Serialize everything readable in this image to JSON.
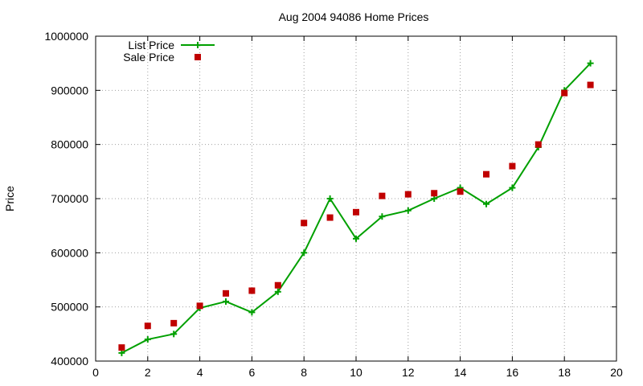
{
  "chart_data": {
    "type": "line",
    "title": "Aug 2004 94086 Home Prices",
    "xlabel": "",
    "ylabel": "Price",
    "xlim": [
      0,
      20
    ],
    "ylim": [
      400000,
      1000000
    ],
    "xticks": [
      0,
      2,
      4,
      6,
      8,
      10,
      12,
      14,
      16,
      18,
      20
    ],
    "yticks": [
      400000,
      500000,
      600000,
      700000,
      800000,
      900000,
      1000000
    ],
    "grid": true,
    "legend_position": "top-left",
    "series": [
      {
        "name": "List Price",
        "style": "line-with-plus-markers",
        "color": "#00a000",
        "x": [
          1,
          2,
          3,
          4,
          5,
          6,
          7,
          8,
          9,
          10,
          11,
          12,
          13,
          14,
          15,
          16,
          17,
          18,
          19
        ],
        "values": [
          415000,
          440000,
          450000,
          498000,
          510000,
          490000,
          528000,
          600000,
          700000,
          626000,
          667000,
          678000,
          700000,
          720000,
          690000,
          720000,
          795000,
          900000,
          950000
        ]
      },
      {
        "name": "Sale Price",
        "style": "square-markers",
        "color": "#c00000",
        "x": [
          1,
          2,
          3,
          4,
          5,
          6,
          7,
          8,
          9,
          10,
          11,
          12,
          13,
          14,
          15,
          16,
          17,
          18,
          19
        ],
        "values": [
          425000,
          465000,
          470000,
          502000,
          525000,
          530000,
          540000,
          655000,
          665000,
          675000,
          705000,
          708000,
          710000,
          713000,
          745000,
          760000,
          800000,
          895000,
          910000
        ]
      }
    ]
  }
}
